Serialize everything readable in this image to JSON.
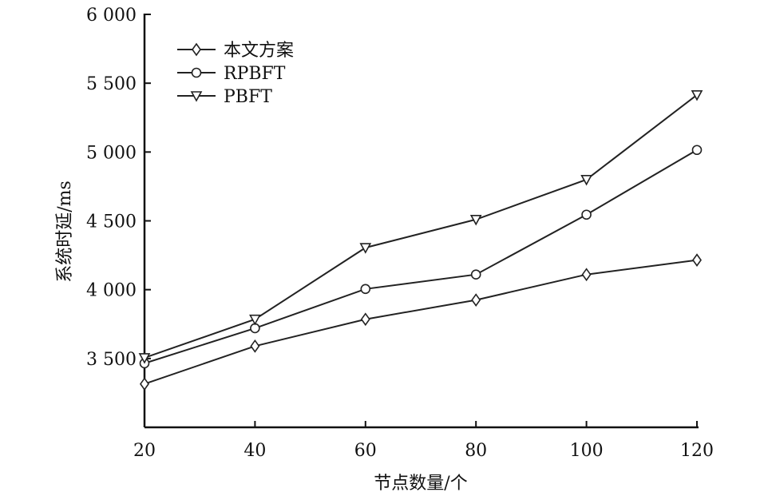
{
  "chart_data": {
    "type": "line",
    "title": "",
    "xlabel": "节点数量/个",
    "ylabel": "系统时延/ms",
    "x": [
      20,
      40,
      60,
      80,
      100,
      120
    ],
    "xlim": [
      20,
      120
    ],
    "ylim": [
      3000,
      6000
    ],
    "xticks": [
      "20",
      "40",
      "60",
      "80",
      "100",
      "120"
    ],
    "yticks": [
      {
        "value": 3500,
        "label": "3 500"
      },
      {
        "value": 4000,
        "label": "4 000"
      },
      {
        "value": 4500,
        "label": "4 500"
      },
      {
        "value": 5000,
        "label": "5 000"
      },
      {
        "value": 5500,
        "label": "5 500"
      },
      {
        "value": 6000,
        "label": "6 000"
      }
    ],
    "grid": false,
    "legend_position": "top-left",
    "series": [
      {
        "name": "本文方案",
        "marker": "diamond",
        "values": [
          3315,
          3590,
          3785,
          3925,
          4110,
          4215
        ]
      },
      {
        "name": "RPBFT",
        "marker": "circle",
        "values": [
          3465,
          3720,
          4005,
          4110,
          4545,
          5015
        ]
      },
      {
        "name": "PBFT",
        "marker": "triangle-down",
        "values": [
          3505,
          3785,
          4305,
          4510,
          4800,
          5415
        ]
      }
    ]
  }
}
